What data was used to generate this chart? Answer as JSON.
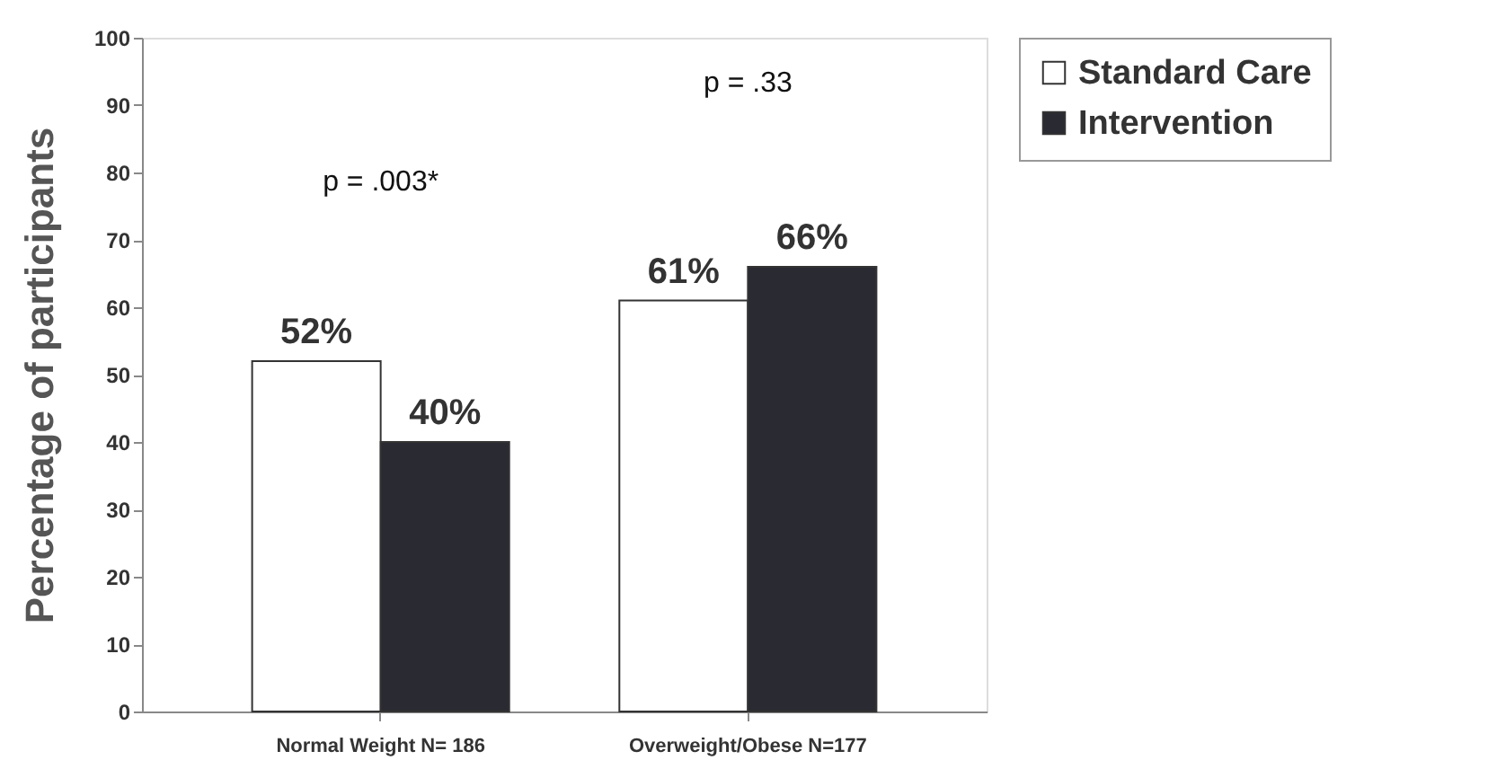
{
  "chart_data": {
    "type": "bar",
    "ylabel": "Percentage of participants",
    "categories": [
      "Normal Weight N= 186",
      "Overweight/Obese N=177"
    ],
    "series": [
      {
        "name": "Standard Care",
        "color": "#ffffff",
        "values": [
          52,
          61
        ],
        "value_labels": [
          "52%",
          "61%"
        ]
      },
      {
        "name": "Intervention",
        "color": "#2a2a33",
        "values": [
          40,
          66
        ],
        "value_labels": [
          "40%",
          "66%"
        ]
      }
    ],
    "ylim": [
      0,
      100
    ],
    "yticks": [
      0,
      10,
      20,
      30,
      40,
      50,
      60,
      70,
      80,
      90,
      100
    ],
    "annotations": [
      "p = .003*",
      "p = .33"
    ],
    "grid": false,
    "legend": "right"
  }
}
